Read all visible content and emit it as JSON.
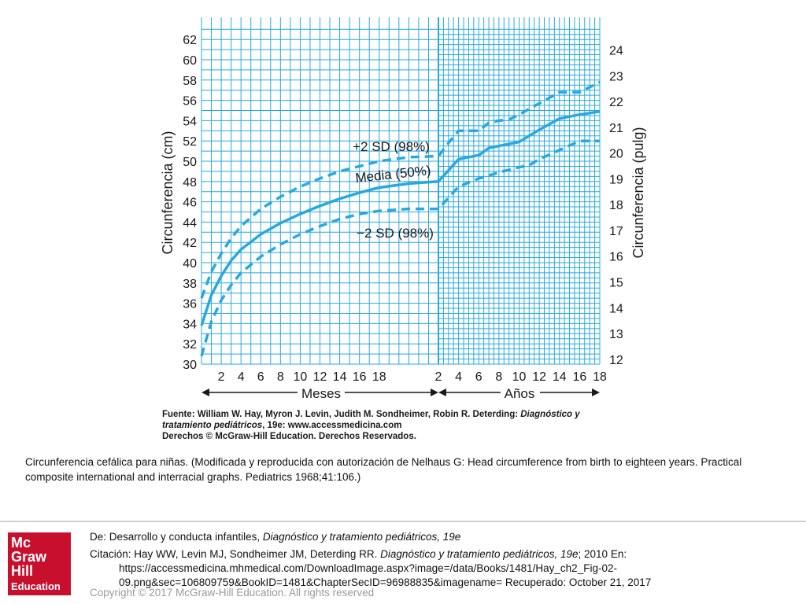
{
  "chart_data": {
    "type": "line",
    "title": "",
    "ylabel": "Circunferencia (cm)",
    "ylabel_right": "Circunferencia (pulg)",
    "ylim": [
      30,
      63
    ],
    "ylim_right": [
      11.8,
      24.8
    ],
    "y_ticks": [
      30,
      32,
      34,
      36,
      38,
      40,
      42,
      44,
      46,
      48,
      50,
      52,
      54,
      56,
      58,
      60,
      62
    ],
    "y_ticks_right": [
      12,
      13,
      14,
      15,
      16,
      17,
      18,
      19,
      20,
      21,
      22,
      23,
      24
    ],
    "x_ticks_months": [
      "2",
      "4",
      "6",
      "8",
      "10",
      "12",
      "14",
      "16",
      "18"
    ],
    "x_ticks_years": [
      "2",
      "4",
      "6",
      "8",
      "10",
      "12",
      "14",
      "16",
      "18"
    ],
    "x_period_months": "Meses",
    "x_period_years": "Años",
    "grid": true,
    "series": [
      {
        "name": "+2 SD (98%)",
        "style": "dashed",
        "color": "#29a8e0",
        "points": [
          {
            "period": "months",
            "x": 0,
            "y": 36.5
          },
          {
            "period": "months",
            "x": 1,
            "y": 39.1
          },
          {
            "period": "months",
            "x": 2,
            "y": 40.9
          },
          {
            "period": "months",
            "x": 3,
            "y": 42.4
          },
          {
            "period": "months",
            "x": 4,
            "y": 43.6
          },
          {
            "period": "months",
            "x": 6,
            "y": 45.3
          },
          {
            "period": "months",
            "x": 8,
            "y": 46.5
          },
          {
            "period": "months",
            "x": 10,
            "y": 47.5
          },
          {
            "period": "months",
            "x": 12,
            "y": 48.3
          },
          {
            "period": "months",
            "x": 14,
            "y": 49.0
          },
          {
            "period": "months",
            "x": 16,
            "y": 49.5
          },
          {
            "period": "months",
            "x": 18,
            "y": 50.0
          },
          {
            "period": "months",
            "x": 21,
            "y": 50.4
          },
          {
            "period": "years",
            "x": 2,
            "y": 50.5
          },
          {
            "period": "years",
            "x": 3,
            "y": 51.8
          },
          {
            "period": "years",
            "x": 4,
            "y": 53.0
          },
          {
            "period": "years",
            "x": 5,
            "y": 53.0
          },
          {
            "period": "years",
            "x": 6,
            "y": 53.0
          },
          {
            "period": "years",
            "x": 7,
            "y": 53.8
          },
          {
            "period": "years",
            "x": 8,
            "y": 54.0
          },
          {
            "period": "years",
            "x": 9,
            "y": 54.1
          },
          {
            "period": "years",
            "x": 10,
            "y": 54.6
          },
          {
            "period": "years",
            "x": 12,
            "y": 55.7
          },
          {
            "period": "years",
            "x": 14,
            "y": 56.8
          },
          {
            "period": "years",
            "x": 16,
            "y": 56.8
          },
          {
            "period": "years",
            "x": 18,
            "y": 57.8
          }
        ]
      },
      {
        "name": "Media (50%)",
        "style": "solid",
        "color": "#29a8e0",
        "points": [
          {
            "period": "months",
            "x": 0,
            "y": 33.8
          },
          {
            "period": "months",
            "x": 1,
            "y": 36.8
          },
          {
            "period": "months",
            "x": 2,
            "y": 38.7
          },
          {
            "period": "months",
            "x": 3,
            "y": 40.2
          },
          {
            "period": "months",
            "x": 4,
            "y": 41.3
          },
          {
            "period": "months",
            "x": 6,
            "y": 42.8
          },
          {
            "period": "months",
            "x": 8,
            "y": 43.9
          },
          {
            "period": "months",
            "x": 10,
            "y": 44.8
          },
          {
            "period": "months",
            "x": 12,
            "y": 45.6
          },
          {
            "period": "months",
            "x": 14,
            "y": 46.3
          },
          {
            "period": "months",
            "x": 16,
            "y": 46.9
          },
          {
            "period": "months",
            "x": 18,
            "y": 47.4
          },
          {
            "period": "months",
            "x": 21,
            "y": 47.8
          },
          {
            "period": "years",
            "x": 2,
            "y": 48.0
          },
          {
            "period": "years",
            "x": 4,
            "y": 50.2
          },
          {
            "period": "years",
            "x": 6,
            "y": 50.6
          },
          {
            "period": "years",
            "x": 7,
            "y": 51.3
          },
          {
            "period": "years",
            "x": 8,
            "y": 51.5
          },
          {
            "period": "years",
            "x": 10,
            "y": 51.9
          },
          {
            "period": "years",
            "x": 12,
            "y": 53.1
          },
          {
            "period": "years",
            "x": 14,
            "y": 54.2
          },
          {
            "period": "years",
            "x": 16,
            "y": 54.6
          },
          {
            "period": "years",
            "x": 18,
            "y": 54.9
          }
        ]
      },
      {
        "name": "−2 SD (98%)",
        "style": "dashed",
        "color": "#29a8e0",
        "points": [
          {
            "period": "months",
            "x": 0,
            "y": 30.8
          },
          {
            "period": "months",
            "x": 1,
            "y": 34.2
          },
          {
            "period": "months",
            "x": 2,
            "y": 36.3
          },
          {
            "period": "months",
            "x": 3,
            "y": 37.8
          },
          {
            "period": "months",
            "x": 4,
            "y": 39.0
          },
          {
            "period": "months",
            "x": 6,
            "y": 40.6
          },
          {
            "period": "months",
            "x": 8,
            "y": 41.8
          },
          {
            "period": "months",
            "x": 10,
            "y": 42.8
          },
          {
            "period": "months",
            "x": 12,
            "y": 43.6
          },
          {
            "period": "months",
            "x": 14,
            "y": 44.3
          },
          {
            "period": "months",
            "x": 16,
            "y": 44.8
          },
          {
            "period": "months",
            "x": 18,
            "y": 45.1
          },
          {
            "period": "months",
            "x": 21,
            "y": 45.3
          },
          {
            "period": "years",
            "x": 2,
            "y": 45.3
          },
          {
            "period": "years",
            "x": 4,
            "y": 47.5
          },
          {
            "period": "years",
            "x": 6,
            "y": 48.3
          },
          {
            "period": "years",
            "x": 8,
            "y": 48.9
          },
          {
            "period": "years",
            "x": 10,
            "y": 49.4
          },
          {
            "period": "years",
            "x": 11,
            "y": 49.6
          },
          {
            "period": "years",
            "x": 12,
            "y": 50.2
          },
          {
            "period": "years",
            "x": 14,
            "y": 51.1
          },
          {
            "period": "years",
            "x": 16,
            "y": 52.0
          },
          {
            "period": "years",
            "x": 18,
            "y": 52.0
          }
        ]
      }
    ]
  },
  "source": {
    "prefix": "Fuente: William W. Hay, Myron J. Levin, Judith M. Sondheimer, Robin R. Deterding: ",
    "title_line1": "Diagnóstico y",
    "title_line2": "tratamiento pediátricos",
    "suffix": ", 19e: www.accessmedicina.com",
    "rights": "Derechos © McGraw-Hill Education. Derechos Reservados."
  },
  "caption": "Circunferencia cefálica para niñas. (Modificada y reproducida con autorización de Nelhaus G: Head circumference from birth to eighteen years. Practical composite international and interracial graphs. Pediatrics 1968;41:106.)",
  "footer": {
    "from_prefix": "De: Desarrollo y conducta infantiles, ",
    "from_book": "Diagnóstico y tratamiento pediátricos, 19e",
    "citation_prefix": "Citación: Hay WW, Levin MJ, Sondheimer JM, Deterding RR",
    "citation_sep": ". ",
    "citation_book": "Diagnóstico y tratamiento pediátricos, 19e",
    "citation_year": "; 2010 En:",
    "citation_url_line1": "https://accessmedicina.mhmedical.com/DownloadImage.aspx?image=/data/Books/1481/Hay_ch2_Fig-02-",
    "citation_url_line2": "09.png&sec=106809759&BookID=1481&ChapterSecID=96988835&imagename= Recuperado: October 21, 2017",
    "copyright": "Copyright © 2017 McGraw-Hill Education. All rights reserved"
  },
  "logo": {
    "line1": "Mc",
    "line2": "Graw",
    "line3": "Hill",
    "line4": "Education",
    "color": "#c8102e"
  }
}
